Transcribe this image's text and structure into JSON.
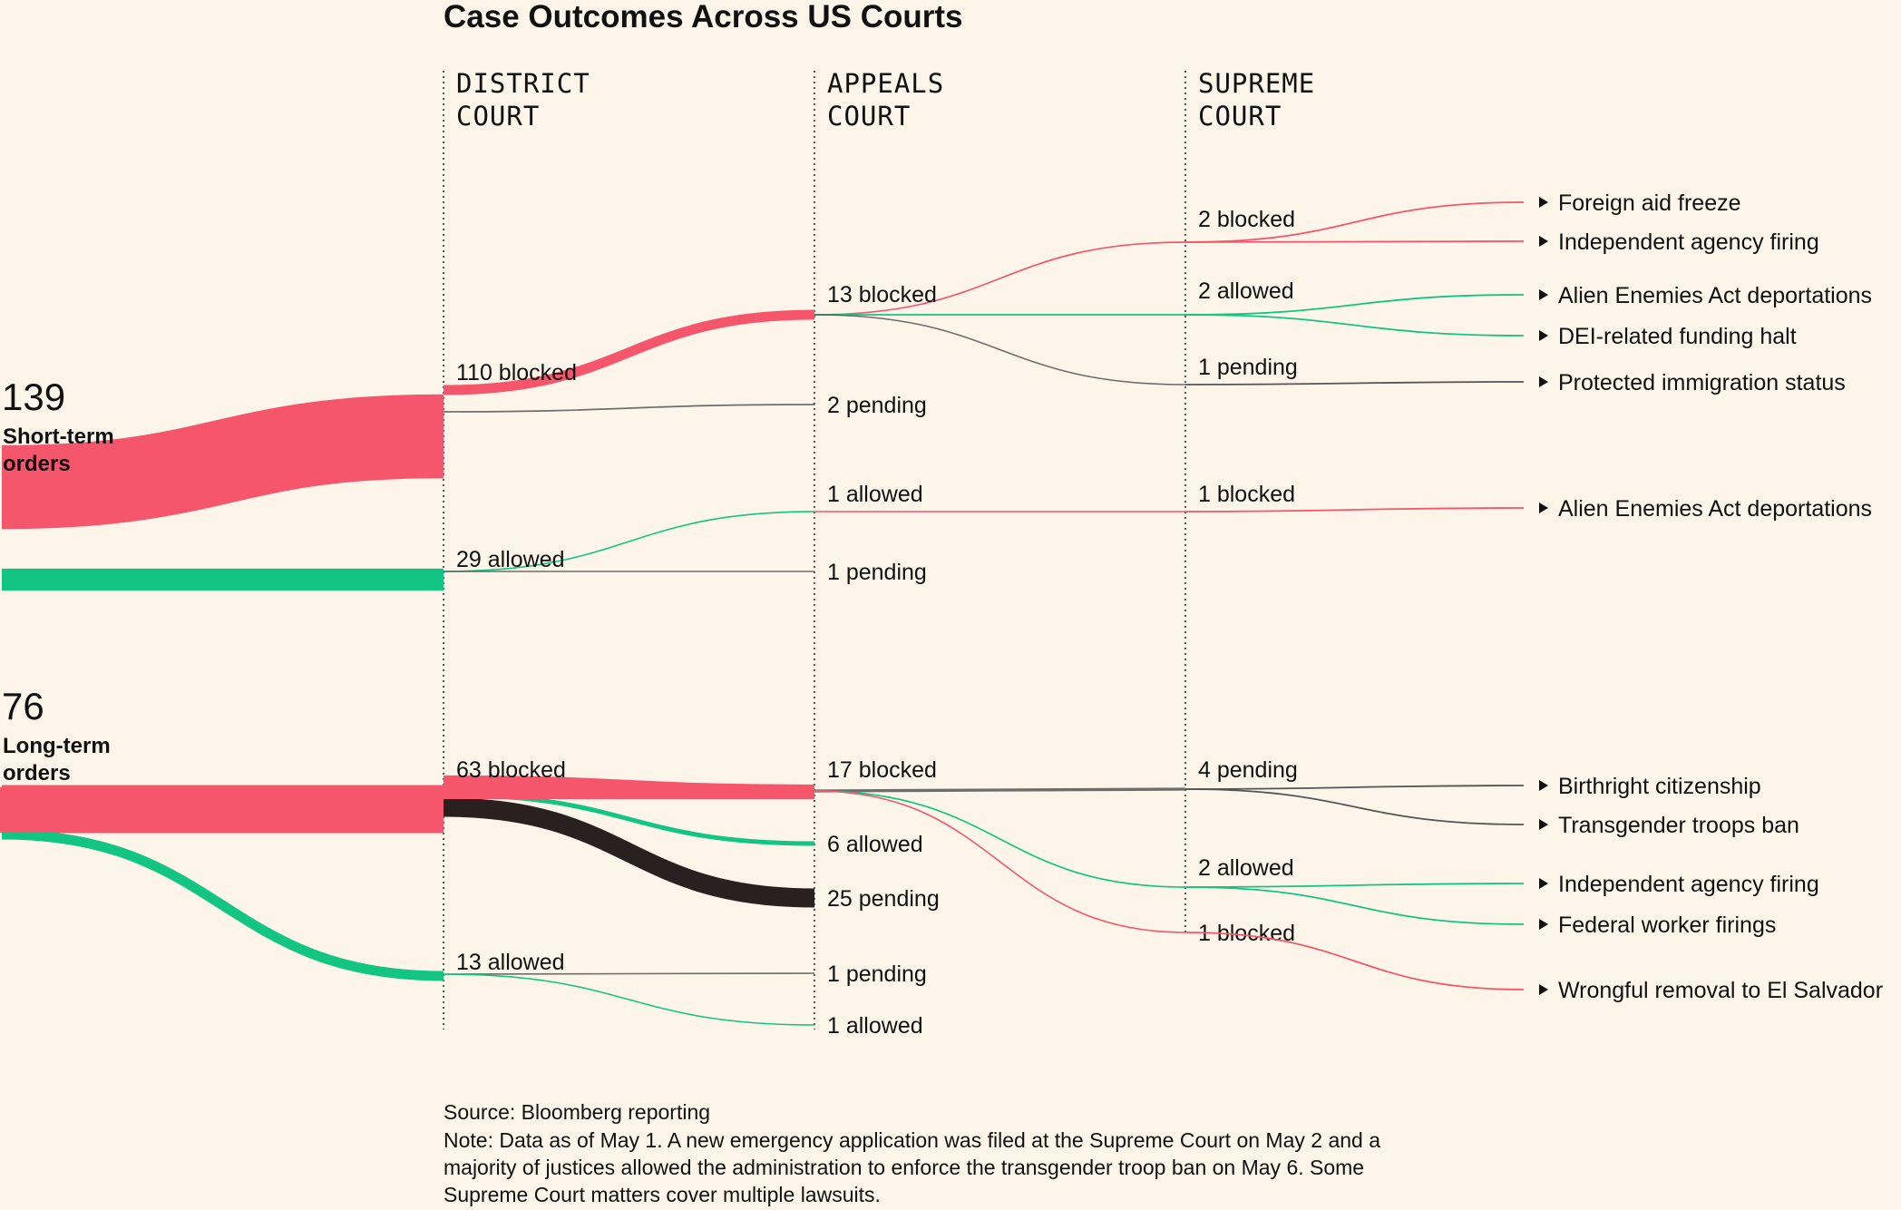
{
  "title": "Case Outcomes Across US Courts",
  "colors": {
    "blocked": "#f5566b",
    "allowed": "#12c583",
    "pending": "#555555",
    "pendingDark": "#2a2020",
    "background": "#fdf5ea"
  },
  "chart_data": {
    "type": "sankey",
    "columns": [
      {
        "id": "district",
        "lines": [
          "DISTRICT",
          "COURT"
        ]
      },
      {
        "id": "appeals",
        "lines": [
          "APPEALS",
          "COURT"
        ]
      },
      {
        "id": "supreme",
        "lines": [
          "SUPREME",
          "COURT"
        ]
      }
    ],
    "groups": [
      {
        "id": "short",
        "count": "139",
        "lines": [
          "Short-term",
          "orders"
        ]
      },
      {
        "id": "long",
        "count": "76",
        "lines": [
          "Long-term",
          "orders"
        ]
      }
    ],
    "node_labels": [
      {
        "id": "s_d_blocked",
        "col": "district",
        "text": "110 blocked"
      },
      {
        "id": "s_d_allowed",
        "col": "district",
        "text": "29 allowed"
      },
      {
        "id": "s_a_blocked",
        "col": "appeals",
        "text": "13 blocked"
      },
      {
        "id": "s_a_pending",
        "col": "appeals",
        "text": "2 pending"
      },
      {
        "id": "s_a_allowed",
        "col": "appeals",
        "text": "1 allowed"
      },
      {
        "id": "s_a_pending2",
        "col": "appeals",
        "text": "1 pending"
      },
      {
        "id": "s_s_blocked",
        "col": "supreme",
        "text": "2 blocked"
      },
      {
        "id": "s_s_allowed",
        "col": "supreme",
        "text": "2 allowed"
      },
      {
        "id": "s_s_pending",
        "col": "supreme",
        "text": "1 pending"
      },
      {
        "id": "s_s_blocked2",
        "col": "supreme",
        "text": "1 blocked"
      },
      {
        "id": "l_d_blocked",
        "col": "district",
        "text": "63 blocked"
      },
      {
        "id": "l_d_allowed",
        "col": "district",
        "text": "13 allowed"
      },
      {
        "id": "l_a_blocked",
        "col": "appeals",
        "text": "17 blocked"
      },
      {
        "id": "l_a_allowed",
        "col": "appeals",
        "text": "6 allowed"
      },
      {
        "id": "l_a_pending",
        "col": "appeals",
        "text": "25 pending"
      },
      {
        "id": "l_a_pending2",
        "col": "appeals",
        "text": "1 pending"
      },
      {
        "id": "l_a_allowed2",
        "col": "appeals",
        "text": "1 allowed"
      },
      {
        "id": "l_s_pending",
        "col": "supreme",
        "text": "4 pending"
      },
      {
        "id": "l_s_allowed",
        "col": "supreme",
        "text": "2 allowed"
      },
      {
        "id": "l_s_blocked",
        "col": "supreme",
        "text": "1 blocked"
      }
    ],
    "flows": [
      {
        "from": "short",
        "to": "s_d_blocked",
        "value": 110,
        "outcome": "blocked"
      },
      {
        "from": "short",
        "to": "s_d_allowed",
        "value": 29,
        "outcome": "allowed"
      },
      {
        "from": "s_d_blocked",
        "to": "s_a_blocked",
        "value": 13,
        "outcome": "blocked"
      },
      {
        "from": "s_d_blocked",
        "to": "s_a_pending",
        "value": 2,
        "outcome": "pending"
      },
      {
        "from": "s_d_allowed",
        "to": "s_a_allowed",
        "value": 1,
        "outcome": "allowed"
      },
      {
        "from": "s_d_allowed",
        "to": "s_a_pending2",
        "value": 1,
        "outcome": "pending"
      },
      {
        "from": "s_a_blocked",
        "to": "s_s_blocked",
        "value": 2,
        "outcome": "blocked"
      },
      {
        "from": "s_a_blocked",
        "to": "s_s_allowed",
        "value": 2,
        "outcome": "allowed"
      },
      {
        "from": "s_a_blocked",
        "to": "s_s_pending",
        "value": 1,
        "outcome": "pending"
      },
      {
        "from": "s_a_allowed",
        "to": "s_s_blocked2",
        "value": 1,
        "outcome": "blocked"
      },
      {
        "from": "long",
        "to": "l_d_blocked",
        "value": 63,
        "outcome": "blocked"
      },
      {
        "from": "long",
        "to": "l_d_allowed",
        "value": 13,
        "outcome": "allowed"
      },
      {
        "from": "l_d_blocked",
        "to": "l_a_blocked",
        "value": 17,
        "outcome": "blocked"
      },
      {
        "from": "l_d_blocked",
        "to": "l_a_allowed",
        "value": 6,
        "outcome": "allowed"
      },
      {
        "from": "l_d_blocked",
        "to": "l_a_pending",
        "value": 25,
        "outcome": "pending"
      },
      {
        "from": "l_d_allowed",
        "to": "l_a_pending2",
        "value": 1,
        "outcome": "pending"
      },
      {
        "from": "l_d_allowed",
        "to": "l_a_allowed2",
        "value": 1,
        "outcome": "allowed"
      },
      {
        "from": "l_a_blocked",
        "to": "l_s_pending",
        "value": 4,
        "outcome": "pending"
      },
      {
        "from": "l_a_blocked",
        "to": "l_s_allowed",
        "value": 2,
        "outcome": "allowed"
      },
      {
        "from": "l_a_blocked",
        "to": "l_s_blocked",
        "value": 1,
        "outcome": "blocked"
      }
    ],
    "cases": [
      {
        "node": "s_s_blocked",
        "text": "Foreign aid freeze"
      },
      {
        "node": "s_s_blocked",
        "text": "Independent agency firing"
      },
      {
        "node": "s_s_allowed",
        "text": "Alien Enemies Act deportations"
      },
      {
        "node": "s_s_allowed",
        "text": "DEI-related funding halt"
      },
      {
        "node": "s_s_pending",
        "text": "Protected immigration status"
      },
      {
        "node": "s_s_blocked2",
        "text": "Alien Enemies Act deportations"
      },
      {
        "node": "l_s_pending",
        "text": "Birthright citizenship"
      },
      {
        "node": "l_s_pending",
        "text": "Transgender troops ban"
      },
      {
        "node": "l_s_allowed",
        "text": "Independent agency firing"
      },
      {
        "node": "l_s_allowed",
        "text": "Federal worker firings"
      },
      {
        "node": "l_s_blocked",
        "text": "Wrongful removal to El Salvador"
      }
    ]
  },
  "footer": {
    "source": "Source: Bloomberg reporting",
    "note_lines": [
      "Note: Data as of May 1. A new emergency application was filed at the Supreme Court on May 2 and a",
      "majority of justices allowed the administration to enforce the transgender troop ban on May 6. Some",
      "Supreme Court matters cover multiple lawsuits."
    ]
  }
}
